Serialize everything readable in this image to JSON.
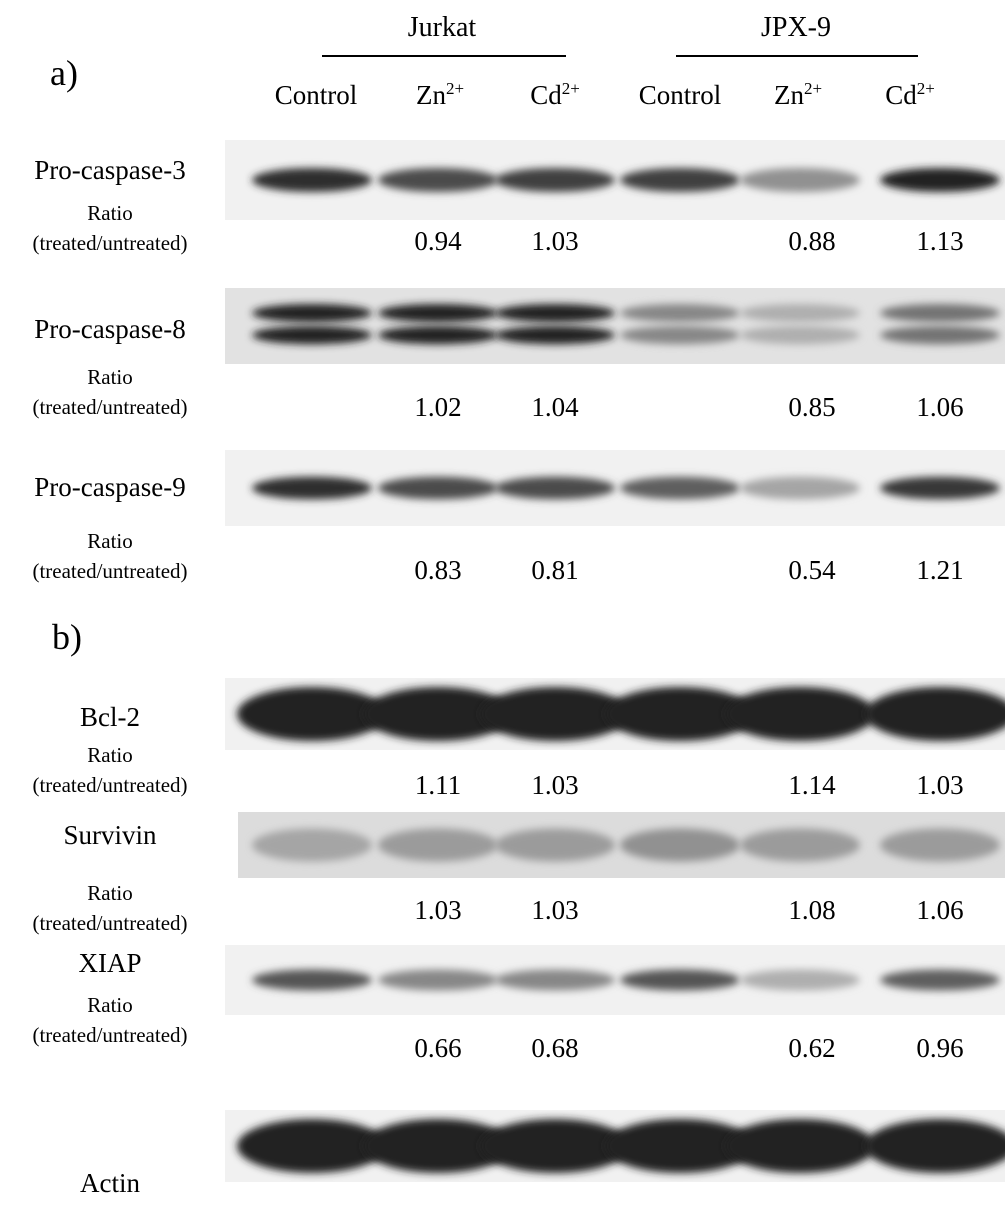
{
  "panel_a": "a)",
  "panel_b": "b)",
  "groups": [
    {
      "name": "Jurkat"
    },
    {
      "name": "JPX-9"
    }
  ],
  "lanes": [
    {
      "label": "Control",
      "ion": ""
    },
    {
      "label": "Zn",
      "ion": "2+"
    },
    {
      "label": "Cd",
      "ion": "2+"
    },
    {
      "label": "Control",
      "ion": ""
    },
    {
      "label": "Zn",
      "ion": "2+"
    },
    {
      "label": "Cd",
      "ion": "2+"
    }
  ],
  "ratio_label_line1": "Ratio",
  "ratio_label_line2": "(treated/untreated)",
  "blots": [
    {
      "protein": "Pro-caspase-3",
      "ratios": [
        "",
        "0.94",
        "1.03",
        "",
        "0.88",
        "1.13"
      ],
      "band_intensity": [
        0.95,
        0.8,
        0.85,
        0.85,
        0.45,
        1.0
      ]
    },
    {
      "protein": "Pro-caspase-8",
      "ratios": [
        "",
        "1.02",
        "1.04",
        "",
        "0.85",
        "1.06"
      ],
      "band_intensity": [
        1.0,
        1.0,
        1.0,
        0.5,
        0.3,
        0.6
      ]
    },
    {
      "protein": "Pro-caspase-9",
      "ratios": [
        "",
        "0.83",
        "0.81",
        "",
        "0.54",
        "1.21"
      ],
      "band_intensity": [
        0.95,
        0.8,
        0.8,
        0.7,
        0.35,
        0.9
      ]
    },
    {
      "protein": "Bcl-2",
      "ratios": [
        "",
        "1.11",
        "1.03",
        "",
        "1.14",
        "1.03"
      ],
      "band_intensity": [
        1.0,
        1.0,
        1.0,
        1.0,
        1.0,
        1.0
      ]
    },
    {
      "protein": "Survivin",
      "ratios": [
        "",
        "1.03",
        "1.03",
        "",
        "1.08",
        "1.06"
      ],
      "band_intensity": [
        0.35,
        0.4,
        0.4,
        0.45,
        0.4,
        0.4
      ]
    },
    {
      "protein": "XIAP",
      "ratios": [
        "",
        "0.66",
        "0.68",
        "",
        "0.62",
        "0.96"
      ],
      "band_intensity": [
        0.75,
        0.5,
        0.5,
        0.75,
        0.3,
        0.7
      ]
    },
    {
      "protein": "Actin",
      "ratios": [
        "",
        "",
        "",
        "",
        "",
        ""
      ],
      "band_intensity": [
        1.0,
        1.0,
        1.0,
        1.0,
        1.0,
        1.0
      ]
    }
  ]
}
